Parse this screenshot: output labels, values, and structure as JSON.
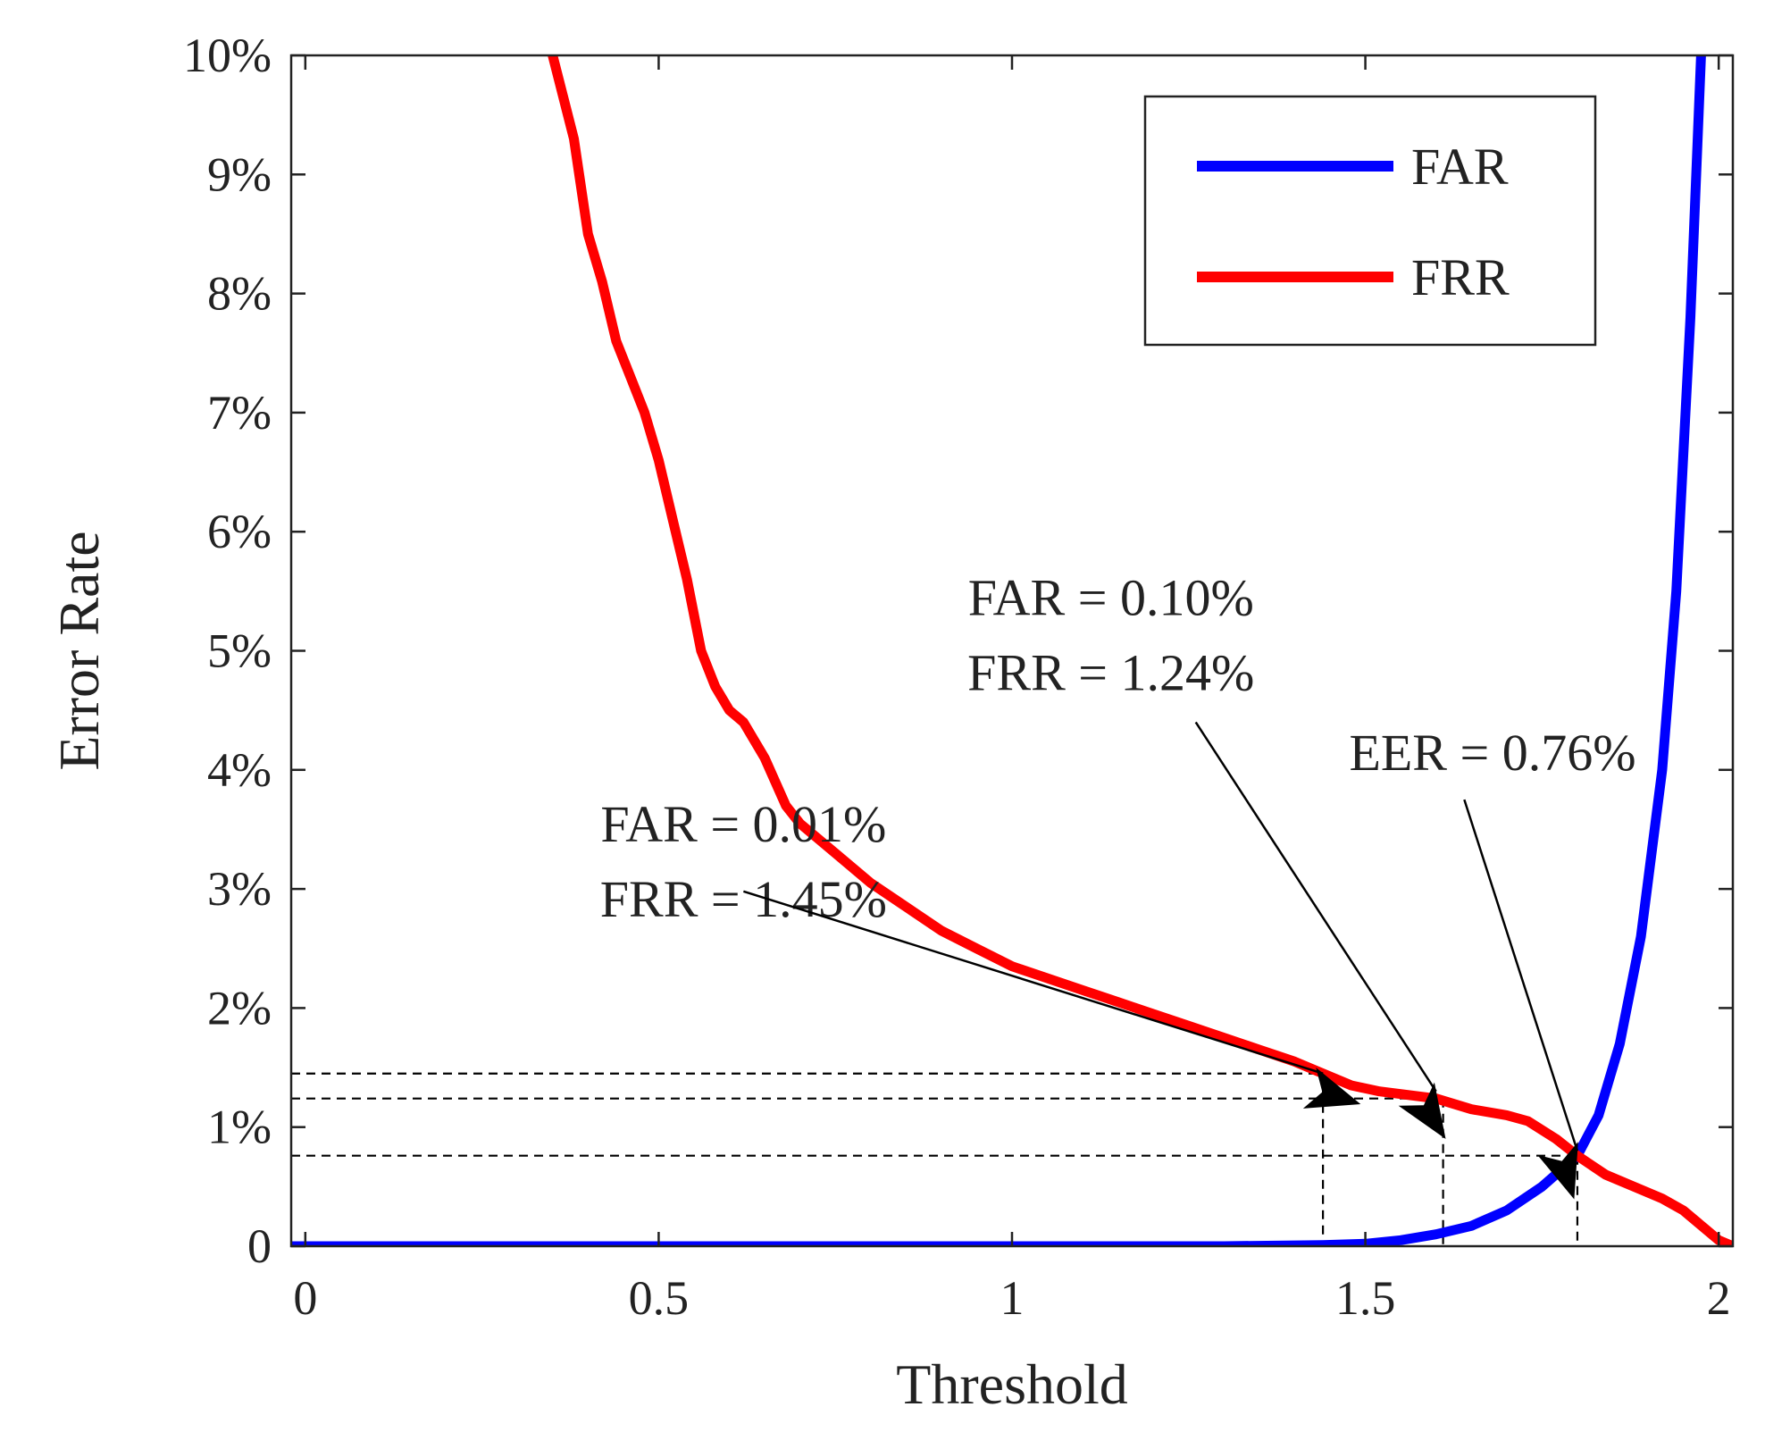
{
  "chart_data": {
    "type": "line",
    "title": "",
    "xlabel": "Threshold",
    "ylabel": "Error Rate",
    "xlim": [
      -0.02,
      2.02
    ],
    "ylim": [
      0,
      10
    ],
    "x_ticks": [
      0,
      0.5,
      1,
      1.5,
      2
    ],
    "x_tick_labels": [
      "0",
      "0.5",
      "1",
      "1.5",
      "2"
    ],
    "y_ticks": [
      0,
      1,
      2,
      3,
      4,
      5,
      6,
      7,
      8,
      9,
      10
    ],
    "y_tick_labels": [
      "0",
      "1%",
      "2%",
      "3%",
      "4%",
      "5%",
      "6%",
      "7%",
      "8%",
      "9%",
      "10%"
    ],
    "grid": false,
    "legend_position": "top-right",
    "series": [
      {
        "name": "FAR",
        "color": "#0000ff",
        "x": [
          -0.02,
          0.5,
          1.0,
          1.3,
          1.44,
          1.5,
          1.55,
          1.6,
          1.65,
          1.7,
          1.75,
          1.8,
          1.83,
          1.86,
          1.89,
          1.92,
          1.94,
          1.96,
          1.975
        ],
        "y": [
          0,
          0,
          0,
          0,
          0.01,
          0.02,
          0.05,
          0.1,
          0.17,
          0.3,
          0.5,
          0.76,
          1.1,
          1.7,
          2.6,
          4.0,
          5.5,
          7.8,
          10
        ]
      },
      {
        "name": "FRR",
        "color": "#ff0000",
        "x": [
          0.35,
          0.38,
          0.4,
          0.42,
          0.44,
          0.46,
          0.48,
          0.5,
          0.52,
          0.54,
          0.56,
          0.58,
          0.6,
          0.62,
          0.65,
          0.68,
          0.7,
          0.75,
          0.8,
          0.85,
          0.9,
          0.95,
          1.0,
          1.05,
          1.1,
          1.15,
          1.2,
          1.25,
          1.3,
          1.35,
          1.4,
          1.44,
          1.48,
          1.52,
          1.56,
          1.6,
          1.65,
          1.7,
          1.73,
          1.77,
          1.8,
          1.84,
          1.88,
          1.92,
          1.95,
          1.98,
          2.0,
          2.02
        ],
        "y": [
          10,
          9.3,
          8.5,
          8.1,
          7.6,
          7.3,
          7.0,
          6.6,
          6.1,
          5.6,
          5.0,
          4.7,
          4.5,
          4.4,
          4.1,
          3.7,
          3.55,
          3.3,
          3.05,
          2.85,
          2.65,
          2.5,
          2.35,
          2.25,
          2.15,
          2.05,
          1.95,
          1.85,
          1.75,
          1.65,
          1.55,
          1.45,
          1.35,
          1.3,
          1.27,
          1.24,
          1.15,
          1.1,
          1.05,
          0.9,
          0.76,
          0.6,
          0.5,
          0.4,
          0.3,
          0.15,
          0.05,
          0
        ]
      }
    ],
    "reference_lines": [
      {
        "x": 1.44,
        "y": 1.45
      },
      {
        "x": 1.61,
        "y": 1.24
      },
      {
        "x": 1.8,
        "y": 0.76
      }
    ],
    "annotations": [
      {
        "lines": [
          "FAR = 0.01%",
          "FRR = 1.45%"
        ],
        "text_x": 0.62,
        "text_y": 3.4,
        "arrow_from": [
          0.62,
          2.98
        ],
        "arrow_to": [
          1.44,
          1.45
        ]
      },
      {
        "lines": [
          "FAR = 0.10%",
          "FRR = 1.24%"
        ],
        "text_x": 1.14,
        "text_y": 5.3,
        "arrow_from": [
          1.26,
          4.4
        ],
        "arrow_to": [
          1.6,
          1.3
        ]
      },
      {
        "lines": [
          "EER = 0.76%"
        ],
        "text_x": 1.68,
        "text_y": 4.0,
        "arrow_from": [
          1.64,
          3.75
        ],
        "arrow_to": [
          1.8,
          0.8
        ]
      }
    ]
  }
}
